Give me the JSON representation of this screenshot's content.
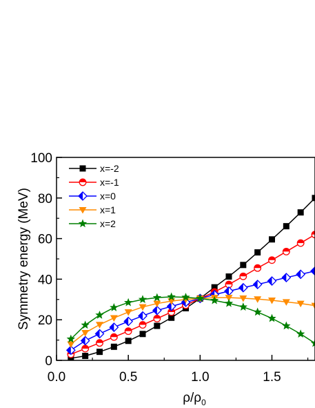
{
  "chart_data": {
    "type": "line",
    "ylabel": "Symmetry energy (MeV)",
    "xlabel": {
      "main": "ρ/ρ",
      "sub": "0"
    },
    "xlim": [
      0.0,
      1.8
    ],
    "ylim": [
      0,
      100
    ],
    "xticks": [
      "0.0",
      "0.5",
      "1.0",
      "1.5"
    ],
    "yticks": [
      "0",
      "20",
      "40",
      "60",
      "80",
      "100"
    ],
    "grid": false,
    "legend_position": "top-left",
    "x": [
      0.1,
      0.2,
      0.3,
      0.4,
      0.5,
      0.6,
      0.7,
      0.8,
      0.9,
      1.0,
      1.1,
      1.2,
      1.3,
      1.4,
      1.5,
      1.6,
      1.7,
      1.8
    ],
    "series": [
      {
        "name": "x=-2",
        "color": "#000000",
        "marker": "square",
        "values": [
          1,
          2.2,
          4.2,
          6.7,
          9.6,
          13,
          17,
          21,
          25.7,
          30.5,
          36,
          41.3,
          47,
          53.2,
          59.6,
          66.1,
          72.9,
          80
        ]
      },
      {
        "name": "x=-1",
        "color": "#ff0000",
        "marker": "circle-half",
        "values": [
          3,
          5.8,
          8.6,
          11.5,
          14.4,
          17.5,
          20.6,
          23.8,
          27.2,
          30.5,
          33.7,
          37.4,
          41.4,
          45.5,
          49.4,
          53.6,
          57.8,
          62
        ]
      },
      {
        "name": "x=0",
        "color": "#0000ff",
        "marker": "diamond-half",
        "values": [
          5,
          9.7,
          13.1,
          16.3,
          19.2,
          21.9,
          24.6,
          26.6,
          28.6,
          30.5,
          32.4,
          34.1,
          35.8,
          37.4,
          39.1,
          40.8,
          42.4,
          44
        ]
      },
      {
        "name": "x=1",
        "color": "#ff8c00",
        "marker": "triangle-down",
        "values": [
          8,
          13.6,
          17.6,
          20.9,
          23.8,
          26.3,
          28,
          29.2,
          30,
          30.5,
          30.9,
          30.9,
          30.6,
          30.2,
          29.6,
          28.8,
          28,
          27
        ]
      },
      {
        "name": "x=2",
        "color": "#007f00",
        "marker": "star",
        "values": [
          10.5,
          17.4,
          22.3,
          26,
          28.5,
          30,
          30.9,
          31.3,
          31.1,
          30.5,
          29.5,
          28.1,
          26.3,
          23.8,
          20.7,
          17,
          13,
          8.4
        ]
      }
    ]
  }
}
